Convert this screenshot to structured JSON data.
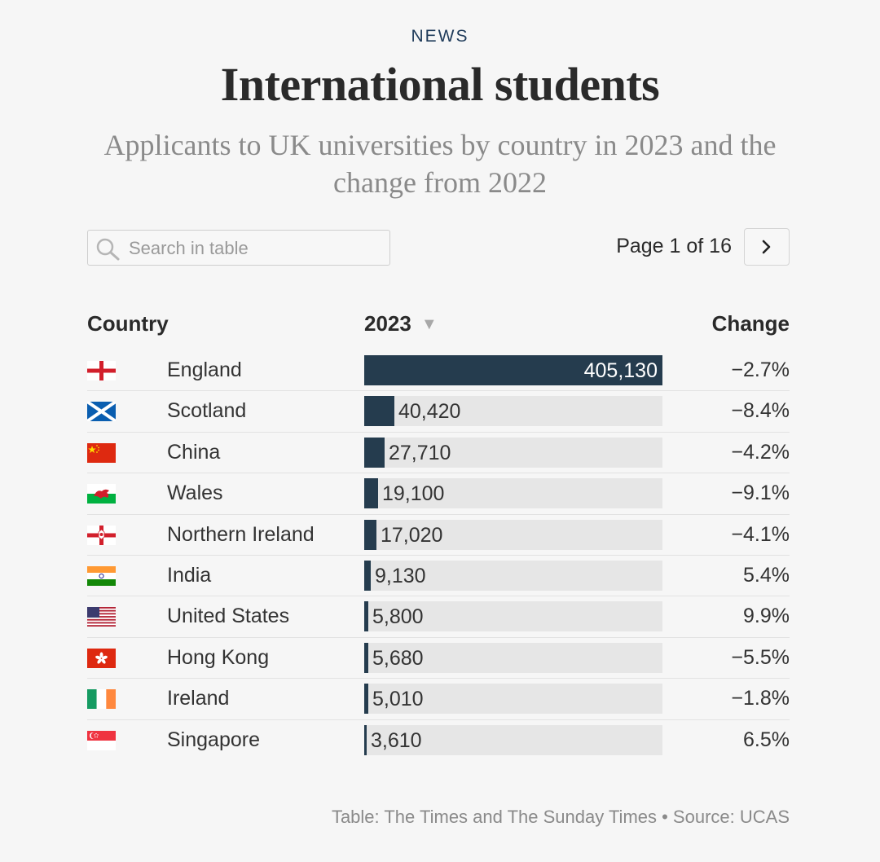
{
  "header": {
    "kicker": "NEWS",
    "title": "International students",
    "subtitle": "Applicants to UK universities by country in 2023 and the change from 2022"
  },
  "search": {
    "placeholder": "Search in table",
    "value": ""
  },
  "pager": {
    "label": "Page 1 of 16",
    "next_icon": "chevron-right-icon"
  },
  "table": {
    "columns": {
      "country": "Country",
      "year": "2023",
      "change": "Change",
      "sort_icon": "sort-desc-icon"
    }
  },
  "chart_data": {
    "type": "table",
    "title": "International students",
    "subtitle": "Applicants to UK universities by country in 2023 and the change from 2022",
    "columns": [
      "Country",
      "2023",
      "Change"
    ],
    "bar_max": 405130,
    "rows": [
      {
        "country": "England",
        "flag": "england",
        "value": 405130,
        "value_label": "405,130",
        "change": "−2.7%"
      },
      {
        "country": "Scotland",
        "flag": "scotland",
        "value": 40420,
        "value_label": "40,420",
        "change": "−8.4%"
      },
      {
        "country": "China",
        "flag": "china",
        "value": 27710,
        "value_label": "27,710",
        "change": "−4.2%"
      },
      {
        "country": "Wales",
        "flag": "wales",
        "value": 19100,
        "value_label": "19,100",
        "change": "−9.1%"
      },
      {
        "country": "Northern Ireland",
        "flag": "northern-ireland",
        "value": 17020,
        "value_label": "17,020",
        "change": "−4.1%"
      },
      {
        "country": "India",
        "flag": "india",
        "value": 9130,
        "value_label": "9,130",
        "change": "5.4%"
      },
      {
        "country": "United States",
        "flag": "united-states",
        "value": 5800,
        "value_label": "5,800",
        "change": "9.9%"
      },
      {
        "country": "Hong Kong",
        "flag": "hong-kong",
        "value": 5680,
        "value_label": "5,680",
        "change": "−5.5%"
      },
      {
        "country": "Ireland",
        "flag": "ireland",
        "value": 5010,
        "value_label": "5,010",
        "change": "−1.8%"
      },
      {
        "country": "Singapore",
        "flag": "singapore",
        "value": 3610,
        "value_label": "3,610",
        "change": "6.5%"
      }
    ]
  },
  "footer": {
    "source": "Table: The Times and The Sunday Times • Source: UCAS"
  },
  "colors": {
    "bar": "#253c4e",
    "bar_track": "#e6e6e6",
    "kicker": "#1f3b5a"
  }
}
